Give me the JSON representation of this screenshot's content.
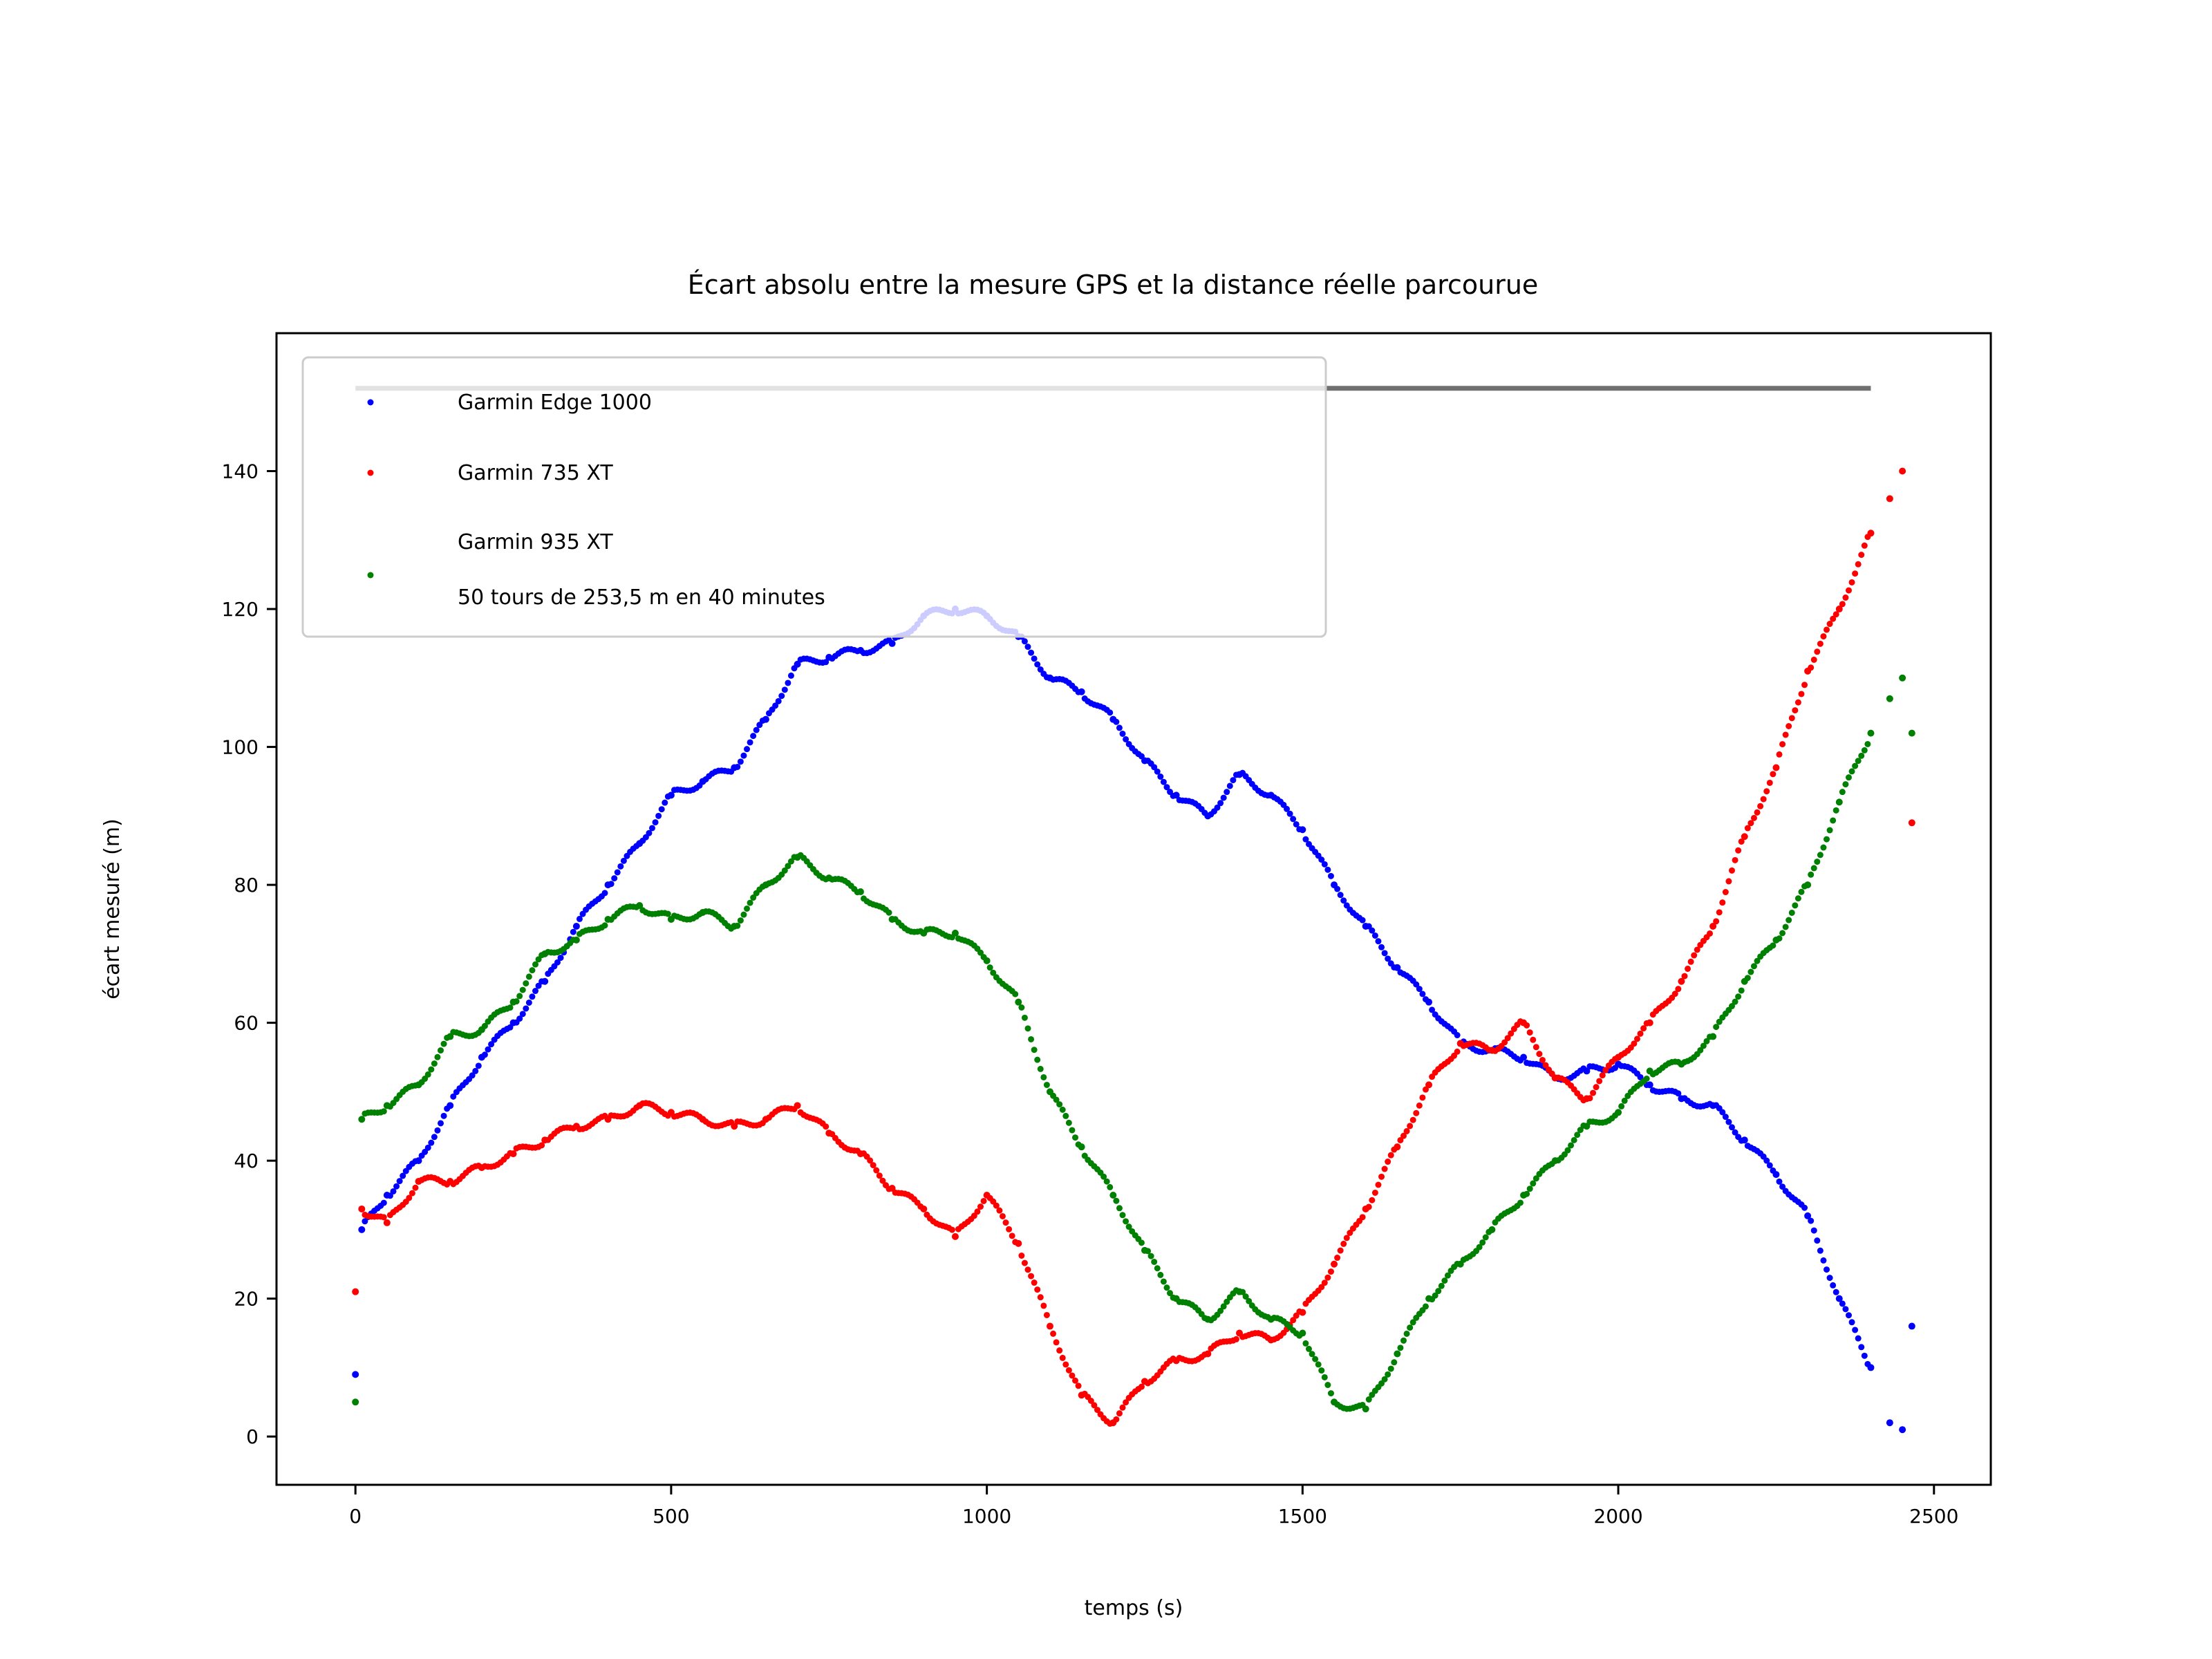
{
  "chart_data": {
    "type": "scatter",
    "title": "Écart absolu entre la mesure GPS et la distance réelle parcourue",
    "xlabel": "temps (s)",
    "ylabel": "écart mesuré (m)",
    "xlim": [
      -125,
      2590
    ],
    "ylim": [
      -7,
      160
    ],
    "xticks": [
      0,
      500,
      1000,
      1500,
      2000,
      2500
    ],
    "yticks": [
      0,
      20,
      40,
      60,
      80,
      100,
      120,
      140
    ],
    "grid": false,
    "legend_position": "top-left",
    "reference_line": {
      "y": 152,
      "x_start": 0,
      "x_end": 2400,
      "color": "#707070"
    },
    "legend": [
      {
        "label": "Garmin Edge 1000",
        "color": "#0000ff"
      },
      {
        "label": "Garmin 735 XT",
        "color": "#ff0000"
      },
      {
        "label": "Garmin 935 XT",
        "color": "#008000"
      }
    ],
    "legend_extra": "50 tours de 253,5 m en 40 minutes",
    "series": [
      {
        "name": "Garmin Edge 1000",
        "color": "#0000ff",
        "x": [
          0,
          10,
          50,
          100,
          150,
          200,
          250,
          300,
          350,
          400,
          450,
          500,
          550,
          600,
          650,
          700,
          750,
          800,
          850,
          900,
          950,
          1000,
          1050,
          1100,
          1150,
          1200,
          1250,
          1300,
          1350,
          1400,
          1450,
          1500,
          1550,
          1600,
          1650,
          1700,
          1750,
          1800,
          1850,
          1900,
          1950,
          2000,
          2050,
          2100,
          2150,
          2200,
          2250,
          2300,
          2350,
          2400,
          2430,
          2450,
          2465
        ],
        "y": [
          9,
          30,
          35,
          40,
          48,
          55,
          60,
          66,
          74,
          80,
          86,
          93,
          95,
          97,
          104,
          112,
          113,
          114,
          115,
          119,
          120,
          119,
          116,
          110,
          108,
          104,
          98,
          93,
          90,
          96,
          93,
          88,
          80,
          74,
          68,
          63,
          57,
          56,
          55,
          52,
          53,
          54,
          51,
          49,
          48,
          43,
          38,
          32,
          20,
          10,
          2,
          1,
          16
        ]
      },
      {
        "name": "Garmin 735 XT",
        "color": "#ff0000",
        "x": [
          0,
          10,
          50,
          100,
          150,
          200,
          250,
          300,
          350,
          400,
          450,
          500,
          550,
          600,
          650,
          700,
          750,
          800,
          850,
          900,
          950,
          1000,
          1050,
          1100,
          1150,
          1200,
          1250,
          1300,
          1350,
          1400,
          1450,
          1500,
          1550,
          1600,
          1650,
          1700,
          1750,
          1800,
          1850,
          1900,
          1950,
          2000,
          2050,
          2100,
          2150,
          2200,
          2250,
          2300,
          2350,
          2400,
          2430,
          2450,
          2465
        ],
        "y": [
          21,
          33,
          31,
          37,
          37,
          39,
          41,
          43,
          45,
          46,
          48,
          47,
          46,
          45,
          46,
          48,
          44,
          41,
          36,
          33,
          29,
          35,
          28,
          16,
          6,
          2,
          8,
          11,
          12,
          15,
          14,
          18,
          25,
          33,
          42,
          51,
          57,
          56,
          60,
          52,
          49,
          55,
          60,
          66,
          74,
          87,
          97,
          111,
          120,
          131,
          136,
          140,
          89
        ]
      },
      {
        "name": "Garmin 935 XT",
        "color": "#008000",
        "x": [
          0,
          10,
          50,
          100,
          150,
          200,
          250,
          300,
          350,
          400,
          450,
          500,
          550,
          600,
          650,
          700,
          750,
          800,
          850,
          900,
          950,
          1000,
          1050,
          1100,
          1150,
          1200,
          1250,
          1300,
          1350,
          1400,
          1450,
          1500,
          1550,
          1600,
          1650,
          1700,
          1750,
          1800,
          1850,
          1900,
          1950,
          2000,
          2050,
          2100,
          2150,
          2200,
          2250,
          2300,
          2350,
          2400,
          2430,
          2450,
          2465
        ],
        "y": [
          5,
          46,
          48,
          51,
          58,
          59,
          63,
          70,
          72,
          75,
          77,
          75,
          76,
          74,
          80,
          84,
          81,
          79,
          75,
          73,
          73,
          69,
          63,
          50,
          42,
          35,
          27,
          20,
          17,
          21,
          17,
          15,
          5,
          4,
          12,
          20,
          25,
          30,
          35,
          40,
          45,
          47,
          53,
          54,
          58,
          66,
          72,
          80,
          92,
          102,
          107,
          110,
          102
        ]
      }
    ]
  }
}
